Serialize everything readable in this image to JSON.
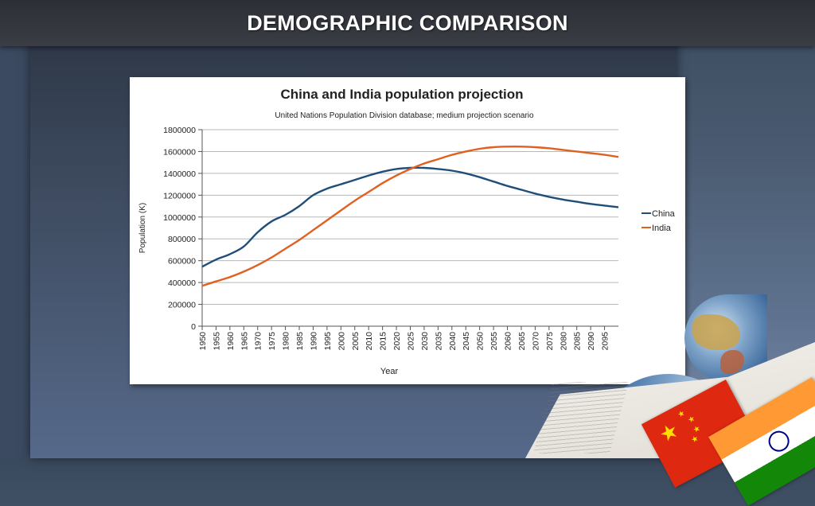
{
  "slide": {
    "title": "DEMOGRAPHIC COMPARISON"
  },
  "chart_data": {
    "type": "line",
    "title": "China and India population projection",
    "subtitle": "United Nations Population Division database; medium  projection scenario",
    "xlabel": "Year",
    "ylabel": "Population (K)",
    "xlim": [
      1950,
      2100
    ],
    "ylim": [
      0,
      1800000
    ],
    "grid": true,
    "legend_position": "right",
    "x": [
      1950,
      1955,
      1960,
      1965,
      1970,
      1975,
      1980,
      1985,
      1990,
      1995,
      2000,
      2005,
      2010,
      2015,
      2020,
      2025,
      2030,
      2035,
      2040,
      2045,
      2050,
      2055,
      2060,
      2065,
      2070,
      2075,
      2080,
      2085,
      2090,
      2095,
      2100
    ],
    "x_tick_labels": [
      "1950",
      "1955",
      "1960",
      "1965",
      "1970",
      "1975",
      "1980",
      "1985",
      "1990",
      "1995",
      "2000",
      "2005",
      "2010",
      "2015",
      "2020",
      "2025",
      "2030",
      "2035",
      "2040",
      "2045",
      "2050",
      "2055",
      "2060",
      "2065",
      "2070",
      "2075",
      "2080",
      "2085",
      "2090",
      "2095"
    ],
    "y_tick_labels": [
      "0",
      "200000",
      "400000",
      "600000",
      "800000",
      "1000000",
      "1200000",
      "1400000",
      "1600000",
      "1800000"
    ],
    "y_ticks": [
      0,
      200000,
      400000,
      600000,
      800000,
      1000000,
      1200000,
      1400000,
      1600000,
      1800000
    ],
    "series": [
      {
        "name": "China",
        "color": "#1f4e79",
        "values": [
          545000,
          610000,
          660000,
          730000,
          860000,
          960000,
          1020000,
          1100000,
          1200000,
          1260000,
          1300000,
          1340000,
          1380000,
          1415000,
          1440000,
          1450000,
          1450000,
          1440000,
          1425000,
          1400000,
          1365000,
          1325000,
          1285000,
          1250000,
          1215000,
          1185000,
          1160000,
          1140000,
          1120000,
          1105000,
          1090000
        ]
      },
      {
        "name": "India",
        "color": "#e06020",
        "values": [
          370000,
          410000,
          450000,
          500000,
          560000,
          630000,
          710000,
          790000,
          880000,
          970000,
          1060000,
          1150000,
          1230000,
          1310000,
          1380000,
          1440000,
          1490000,
          1530000,
          1570000,
          1600000,
          1625000,
          1640000,
          1645000,
          1645000,
          1640000,
          1630000,
          1615000,
          1600000,
          1585000,
          1570000,
          1550000
        ]
      }
    ]
  },
  "colors": {
    "axis": "#555555",
    "grid": "#b8b8b8",
    "title_bar": "#2c2f35"
  },
  "decor_icons": [
    "globe-icon",
    "book-icon",
    "china-flag-icon",
    "india-flag-icon"
  ]
}
